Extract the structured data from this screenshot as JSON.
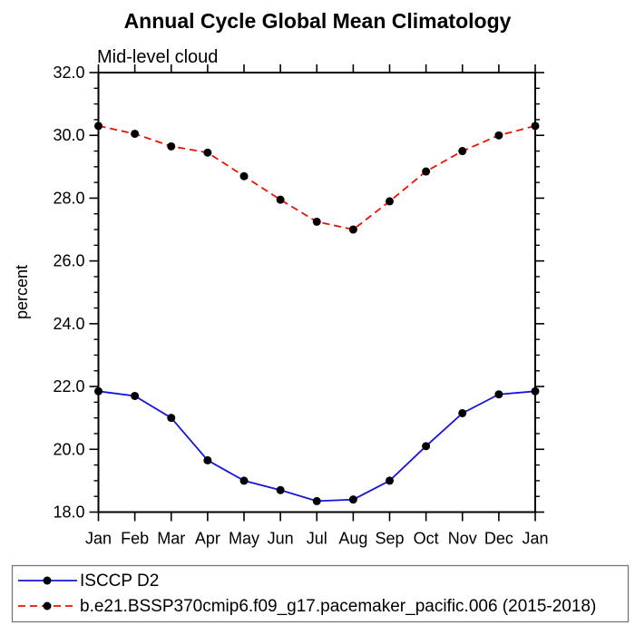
{
  "chart_data": {
    "type": "line",
    "title": "Annual Cycle Global Mean Climatology",
    "subtitle": "Mid-level cloud",
    "xlabel": "",
    "ylabel": "percent",
    "categories": [
      "Jan",
      "Feb",
      "Mar",
      "Apr",
      "May",
      "Jun",
      "Jul",
      "Aug",
      "Sep",
      "Oct",
      "Nov",
      "Dec",
      "Jan"
    ],
    "ylim": [
      18.0,
      32.0
    ],
    "ytick_major_interval": 2.0,
    "ytick_minor_interval": 0.5,
    "ytick_labels": [
      "18.0",
      "20.0",
      "22.0",
      "24.0",
      "26.0",
      "28.0",
      "30.0",
      "32.0"
    ],
    "grid": false,
    "legend_position": "bottom",
    "frame_color": "#000000",
    "series": [
      {
        "name": "ISCCP D2",
        "color": "#1414dd",
        "line_style": "solid",
        "marker": "filled-circle",
        "marker_color": "#000000",
        "values": [
          21.85,
          21.7,
          21.0,
          19.65,
          19.0,
          18.7,
          18.35,
          18.4,
          19.0,
          20.1,
          21.15,
          21.75,
          21.85
        ]
      },
      {
        "name": "b.e21.BSSP370cmip6.f09_g17.pacemaker_pacific.006 (2015-2018)",
        "color": "#ee1100",
        "line_style": "dashed",
        "marker": "filled-circle",
        "marker_color": "#000000",
        "values": [
          30.3,
          30.05,
          29.65,
          29.45,
          28.7,
          27.95,
          27.25,
          27.0,
          27.9,
          28.85,
          29.5,
          30.0,
          30.3
        ]
      }
    ]
  }
}
